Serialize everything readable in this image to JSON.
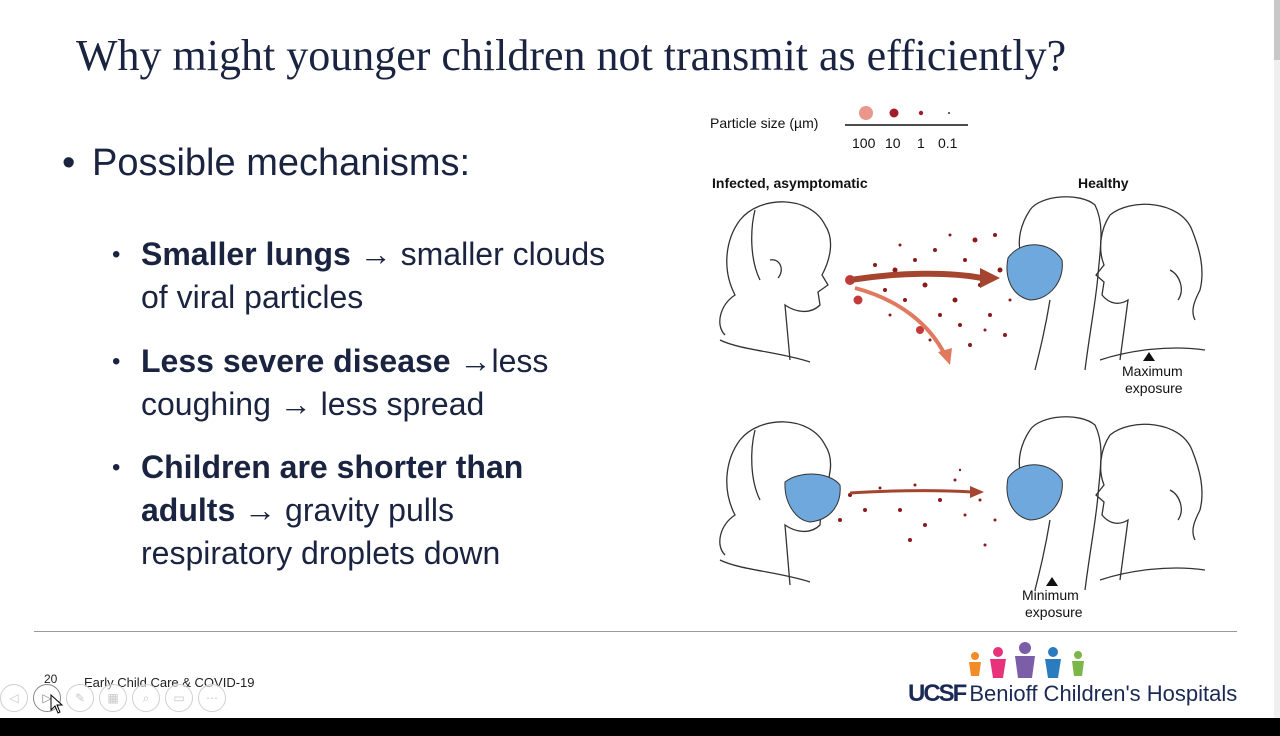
{
  "slide": {
    "title": "Why might younger children not transmit as efficiently?",
    "main_bullet": "Possible mechanisms:",
    "bullets": [
      {
        "bold": "Smaller lungs",
        "rest": " → smaller clouds of viral particles"
      },
      {
        "bold": "Less severe disease",
        "rest": " →less coughing → less spread"
      },
      {
        "bold": "Children are shorter than adults",
        "rest": " → gravity pulls respiratory droplets down"
      }
    ],
    "page_number": "20",
    "footer_text": "Early Child Care & COVID-19"
  },
  "figure": {
    "particle_label": "Particle size (µm)",
    "particle_sizes": [
      "100",
      "10",
      "1",
      "0.1"
    ],
    "infected_label": "Infected, asymptomatic",
    "healthy_label": "Healthy",
    "max_exposure_line1": "Maximum",
    "max_exposure_line2": "exposure",
    "min_exposure_line1": "Minimum",
    "min_exposure_line2": "exposure"
  },
  "brand": {
    "logo_text": "UCSF",
    "name": "Benioff Children's Hospitals"
  },
  "colors": {
    "title": "#1a2440",
    "droplet": "#8b1a1a",
    "arrow": "#b0503c",
    "mask": "#6fa8dc",
    "brand": "#1a2a55"
  }
}
